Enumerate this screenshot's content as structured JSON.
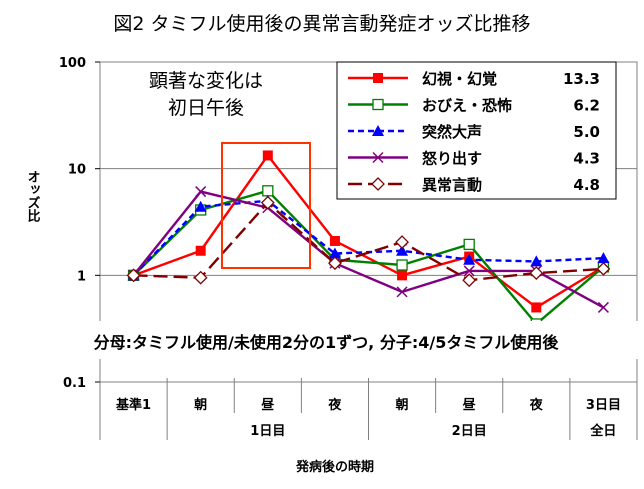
{
  "title": "図2 タミフル使用後の異常言動発症オッズ比推移",
  "annotation_lines": [
    "顕著な変化は",
    "初日午後"
  ],
  "footnote": "分母:タミフル使用/未使用2分の1ずつ, 分子:4/5タミフル使用後",
  "chart_data": {
    "type": "line",
    "title": "図2 タミフル使用後の異常言動発症オッズ比推移",
    "xlabel": "発病後の時期",
    "ylabel": "オッズ比",
    "yscale": "log",
    "ylim": [
      0.1,
      100
    ],
    "yticks": [
      "100",
      "10",
      "1",
      "0.1"
    ],
    "grid": true,
    "legend_position": "top-right",
    "categories": [
      "基準1",
      "朝",
      "昼",
      "夜",
      "朝",
      "昼",
      "夜",
      "3日目"
    ],
    "category_groups": [
      {
        "label": "1日目"
      },
      {
        "label": "2日目"
      },
      {
        "label": "全日"
      }
    ],
    "series": [
      {
        "name": "幻視・幻覚",
        "legend_value": "13.3",
        "color": "#ff0000",
        "dash": "solid",
        "marker": "filled-square",
        "values": [
          1.0,
          1.7,
          13.3,
          2.1,
          1.0,
          1.5,
          0.5,
          1.2
        ]
      },
      {
        "name": "おびえ・恐怖",
        "legend_value": "6.2",
        "color": "#008000",
        "dash": "solid",
        "marker": "open-square",
        "values": [
          1.0,
          4.1,
          6.2,
          1.4,
          1.25,
          1.95,
          0.35,
          1.2
        ]
      },
      {
        "name": "突然大声",
        "legend_value": "5.0",
        "color": "#0000ff",
        "dash": "dashed",
        "marker": "filled-triangle",
        "values": [
          1.0,
          4.4,
          5.0,
          1.6,
          1.7,
          1.4,
          1.35,
          1.45
        ]
      },
      {
        "name": "怒り出す",
        "legend_value": "4.3",
        "color": "#800080",
        "dash": "solid",
        "marker": "x",
        "values": [
          1.0,
          6.1,
          4.3,
          1.3,
          0.7,
          1.1,
          1.1,
          0.5
        ]
      },
      {
        "name": "異常言動",
        "legend_value": "4.8",
        "color": "#800000",
        "dash": "long-dash",
        "marker": "open-diamond",
        "values": [
          1.0,
          0.95,
          4.8,
          1.3,
          2.05,
          0.9,
          1.05,
          1.15
        ]
      }
    ]
  }
}
